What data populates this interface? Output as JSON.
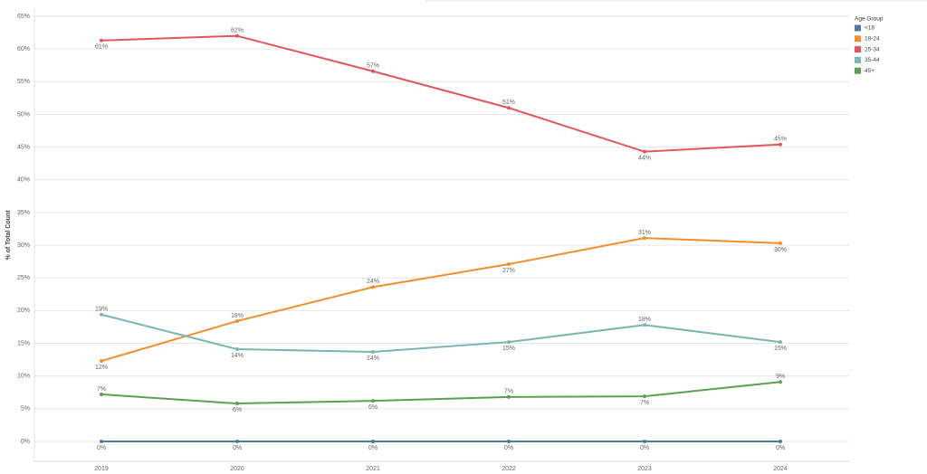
{
  "chart_data": {
    "type": "line",
    "y_label": "% of Total Count",
    "legend_title": "Age Group",
    "legend": "right",
    "grid": true,
    "categories": [
      "2019",
      "2020",
      "2021",
      "2022",
      "2023",
      "2024"
    ],
    "ylim": [
      0,
      65
    ],
    "yticks": [
      {
        "value": 0,
        "label": "0%"
      },
      {
        "value": 5,
        "label": "5%"
      },
      {
        "value": 10,
        "label": "10%"
      },
      {
        "value": 15,
        "label": "15%"
      },
      {
        "value": 20,
        "label": "20%"
      },
      {
        "value": 25,
        "label": "25%"
      },
      {
        "value": 30,
        "label": "30%"
      },
      {
        "value": 35,
        "label": "35%"
      },
      {
        "value": 40,
        "label": "40%"
      },
      {
        "value": 45,
        "label": "45%"
      },
      {
        "value": 50,
        "label": "50%"
      },
      {
        "value": 55,
        "label": "55%"
      },
      {
        "value": 60,
        "label": "60%"
      },
      {
        "value": 65,
        "label": "65%"
      }
    ],
    "series": [
      {
        "name": "<18",
        "color": "#4e79a7",
        "values": [
          0,
          0,
          0,
          0,
          0,
          0
        ],
        "value_labels": [
          "0%",
          "0%",
          "0%",
          "0%",
          "0%",
          "0%"
        ]
      },
      {
        "name": "18-24",
        "color": "#f28e2b",
        "values": [
          12.3,
          18.4,
          23.6,
          27.1,
          31.1,
          30.3
        ],
        "value_labels": [
          "12%",
          "18%",
          "24%",
          "27%",
          "31%",
          "30%"
        ]
      },
      {
        "name": "25-34",
        "color": "#e15759",
        "values": [
          61.3,
          62.0,
          56.6,
          51.0,
          44.3,
          45.4
        ],
        "value_labels": [
          "61%",
          "62%",
          "57%",
          "51%",
          "44%",
          "45%"
        ]
      },
      {
        "name": "35-44",
        "color": "#76b7b2",
        "values": [
          19.4,
          14.1,
          13.7,
          15.2,
          17.8,
          15.2
        ],
        "value_labels": [
          "19%",
          "14%",
          "14%",
          "15%",
          "18%",
          "15%"
        ]
      },
      {
        "name": "45+",
        "color": "#59a14f",
        "values": [
          7.2,
          5.8,
          6.2,
          6.8,
          6.9,
          9.1
        ],
        "value_labels": [
          "7%",
          "6%",
          "6%",
          "7%",
          "7%",
          "9%"
        ]
      }
    ]
  }
}
